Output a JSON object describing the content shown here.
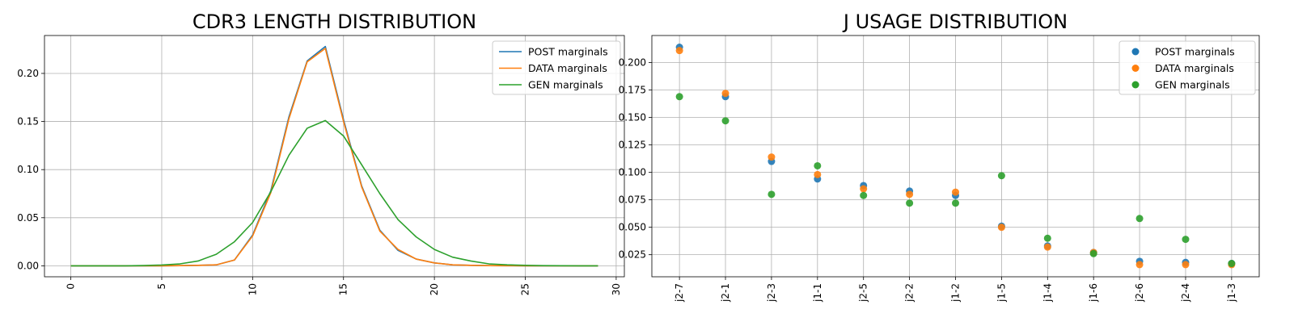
{
  "chart_data": [
    {
      "type": "line",
      "title": "CDR3 LENGTH DISTRIBUTION",
      "xlabel": "",
      "ylabel": "",
      "xlim": [
        -1.45,
        30.45
      ],
      "ylim": [
        -0.0114,
        0.2394
      ],
      "xticks": [
        0,
        5,
        10,
        15,
        20,
        25,
        30
      ],
      "yticks": [
        0.0,
        0.05,
        0.1,
        0.15,
        0.2
      ],
      "ytick_labels": [
        "0.00",
        "0.05",
        "0.10",
        "0.15",
        "0.20"
      ],
      "grid": true,
      "legend_position": "top-right",
      "x": [
        0,
        1,
        2,
        3,
        4,
        5,
        6,
        7,
        8,
        9,
        10,
        11,
        12,
        13,
        14,
        15,
        16,
        17,
        18,
        19,
        20,
        21,
        22,
        23,
        24,
        25,
        26,
        27,
        28,
        29
      ],
      "series": [
        {
          "name": "POST marginals",
          "color": "#1f77b4",
          "values": [
            0,
            0,
            0,
            0,
            0,
            0,
            0.0002,
            0.0005,
            0.001,
            0.006,
            0.032,
            0.078,
            0.155,
            0.213,
            0.228,
            0.152,
            0.083,
            0.037,
            0.016,
            0.007,
            0.003,
            0.001,
            0.0005,
            0.0002,
            0.0001,
            0,
            0,
            0,
            0,
            0
          ]
        },
        {
          "name": "DATA marginals",
          "color": "#ff7f0e",
          "values": [
            0,
            0,
            0,
            0,
            0,
            0,
            0.0002,
            0.0005,
            0.001,
            0.006,
            0.031,
            0.076,
            0.153,
            0.212,
            0.226,
            0.15,
            0.082,
            0.036,
            0.017,
            0.007,
            0.003,
            0.001,
            0.0005,
            0.0002,
            0.0001,
            0,
            0,
            0,
            0,
            0
          ]
        },
        {
          "name": "GEN marginals",
          "color": "#2ca02c",
          "values": [
            0,
            0,
            0,
            0,
            0.0003,
            0.0008,
            0.002,
            0.005,
            0.012,
            0.025,
            0.045,
            0.077,
            0.115,
            0.143,
            0.151,
            0.135,
            0.105,
            0.075,
            0.048,
            0.03,
            0.017,
            0.009,
            0.005,
            0.002,
            0.001,
            0.0005,
            0.0002,
            0.0001,
            0,
            0
          ]
        }
      ]
    },
    {
      "type": "scatter",
      "title": "J USAGE DISTRIBUTION",
      "xlabel": "",
      "ylabel": "",
      "ylim": [
        0.0049,
        0.2247
      ],
      "yticks": [
        0.025,
        0.05,
        0.075,
        0.1,
        0.125,
        0.15,
        0.175,
        0.2
      ],
      "ytick_labels": [
        "0.025",
        "0.050",
        "0.075",
        "0.100",
        "0.125",
        "0.150",
        "0.175",
        "0.200"
      ],
      "grid": true,
      "legend_position": "top-right",
      "categories": [
        "j2-7",
        "j2-1",
        "j2-3",
        "j1-1",
        "j2-5",
        "j2-2",
        "j1-2",
        "j1-5",
        "j1-4",
        "j1-6",
        "j2-6",
        "j2-4",
        "j1-3"
      ],
      "series": [
        {
          "name": "POST marginals",
          "color": "#1f77b4",
          "values": [
            0.214,
            0.169,
            0.11,
            0.094,
            0.088,
            0.083,
            0.079,
            0.051,
            0.033,
            0.027,
            0.019,
            0.018,
            0.017
          ]
        },
        {
          "name": "DATA marginals",
          "color": "#ff7f0e",
          "values": [
            0.211,
            0.172,
            0.114,
            0.098,
            0.085,
            0.08,
            0.082,
            0.05,
            0.032,
            0.027,
            0.016,
            0.016,
            0.016
          ]
        },
        {
          "name": "GEN marginals",
          "color": "#2ca02c",
          "values": [
            0.169,
            0.147,
            0.08,
            0.106,
            0.079,
            0.072,
            0.072,
            0.097,
            0.04,
            0.026,
            0.058,
            0.039,
            0.017
          ]
        }
      ]
    }
  ]
}
